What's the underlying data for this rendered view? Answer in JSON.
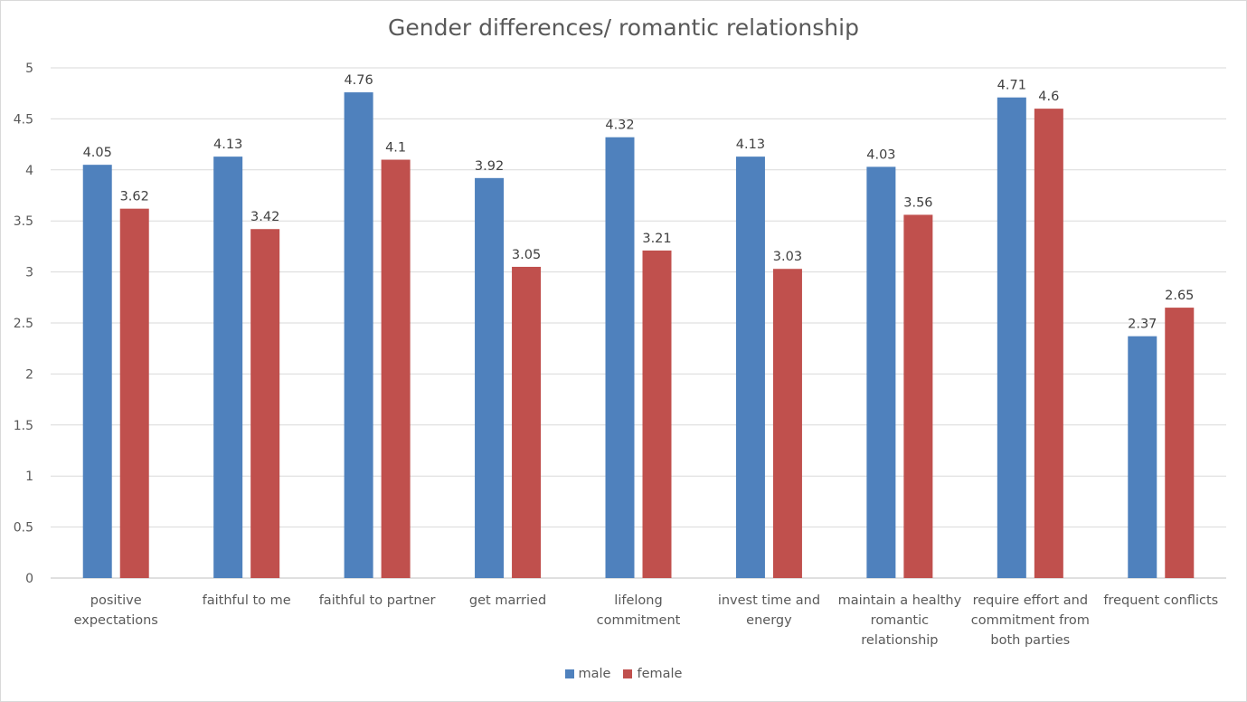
{
  "chart_data": {
    "type": "bar",
    "title": "Gender differences/ romantic relationship",
    "xlabel": "",
    "ylabel": "",
    "ylim": [
      0,
      5
    ],
    "y_ticks": [
      "0",
      "0.5",
      "1",
      "1.5",
      "2",
      "2.5",
      "3",
      "3.5",
      "4",
      "4.5",
      "5"
    ],
    "grid": true,
    "legend_position": "bottom",
    "categories": [
      [
        "positive",
        "expectations"
      ],
      [
        "faithful to me"
      ],
      [
        "faithful to partner"
      ],
      [
        "get married"
      ],
      [
        "lifelong",
        "commitment"
      ],
      [
        "invest time and",
        "energy"
      ],
      [
        "maintain a healthy",
        "romantic",
        "relationship"
      ],
      [
        "require effort and",
        "commitment from",
        "both parties"
      ],
      [
        "frequent conflicts"
      ]
    ],
    "series": [
      {
        "name": "male",
        "color": "#4f81bd",
        "values": [
          4.05,
          4.13,
          4.76,
          3.92,
          4.32,
          4.13,
          4.03,
          4.71,
          2.37
        ]
      },
      {
        "name": "female",
        "color": "#c0504d",
        "values": [
          3.62,
          3.42,
          4.1,
          3.05,
          3.21,
          3.03,
          3.56,
          4.6,
          2.65
        ]
      }
    ]
  },
  "legend": {
    "male_label": "male",
    "female_label": "female",
    "male_color": "#4f81bd",
    "female_color": "#c0504d"
  },
  "colors": {
    "gridline": "#d9d9d9",
    "axis": "#bfbfbf",
    "text": "#595959"
  }
}
